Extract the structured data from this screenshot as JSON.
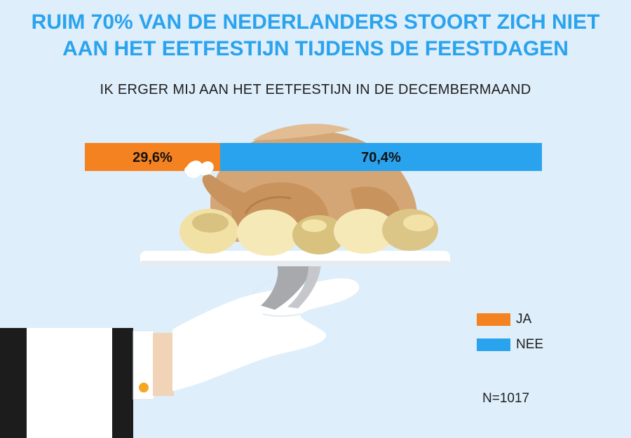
{
  "title": {
    "line1": "RUIM 70% VAN DE NEDERLANDERS STOORT ZICH NIET",
    "line2": "AAN HET EETFESTIJN TIJDENS DE FEESTDAGEN"
  },
  "chart_data": {
    "type": "bar",
    "orientation": "horizontal-stacked",
    "title": "RUIM 70% VAN DE NEDERLANDERS STOORT ZICH NIET AAN HET EETFESTIJN TIJDENS DE FEESTDAGEN",
    "subtitle": "IK ERGER MIJ AAN HET EETFESTIJN IN DE DECEMBERMAAND",
    "categories": [
      "IK ERGER MIJ AAN HET EETFESTIJN IN DE DECEMBERMAAND"
    ],
    "series": [
      {
        "name": "JA",
        "values": [
          29.6
        ],
        "label": "29,6%",
        "color": "#f58220"
      },
      {
        "name": "NEE",
        "values": [
          70.4
        ],
        "label": "70,4%",
        "color": "#2aa3ee"
      }
    ],
    "xlim": [
      0,
      100
    ],
    "legend_position": "right",
    "grid": false
  },
  "legend": [
    {
      "label": "JA",
      "color": "#f58220"
    },
    {
      "label": "NEE",
      "color": "#2aa3ee"
    }
  ],
  "note": "N=1017",
  "illustration": {
    "description_icon": "turkey-platter-hand-icon"
  },
  "colors": {
    "background": "#deeefa",
    "title": "#2aa3ee",
    "ja": "#f58220",
    "nee": "#2aa3ee"
  }
}
